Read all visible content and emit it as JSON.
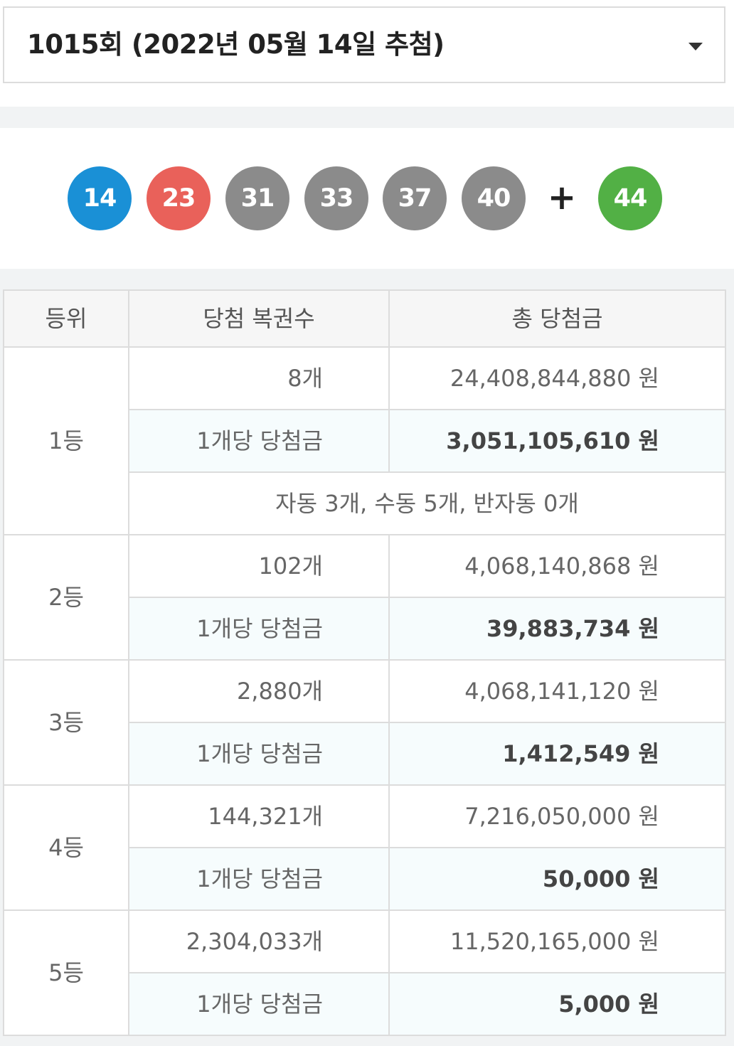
{
  "draw_select": {
    "label": "1015회 (2022년 05월 14일 추첨)",
    "caret_icon": "caret-down-icon"
  },
  "numbers": {
    "main": [
      {
        "value": "14",
        "color": "#1a90d6"
      },
      {
        "value": "23",
        "color": "#e9615a"
      },
      {
        "value": "31",
        "color": "#8b8b8b"
      },
      {
        "value": "33",
        "color": "#8b8b8b"
      },
      {
        "value": "37",
        "color": "#8b8b8b"
      },
      {
        "value": "40",
        "color": "#8b8b8b"
      }
    ],
    "plus": "+",
    "bonus": {
      "value": "44",
      "color": "#52b045"
    }
  },
  "table": {
    "headers": {
      "rank": "등위",
      "count": "당첨 복권수",
      "total": "총 당첨금"
    },
    "per_ticket_label": "1개당 당첨금",
    "rows": [
      {
        "rank": "1등",
        "count": "8개",
        "total": "24,408,844,880 원",
        "per_ticket": "3,051,105,610 원",
        "note": "자동 3개, 수동 5개, 반자동 0개"
      },
      {
        "rank": "2등",
        "count": "102개",
        "total": "4,068,140,868 원",
        "per_ticket": "39,883,734 원"
      },
      {
        "rank": "3등",
        "count": "2,880개",
        "total": "4,068,141,120 원",
        "per_ticket": "1,412,549 원"
      },
      {
        "rank": "4등",
        "count": "144,321개",
        "total": "7,216,050,000 원",
        "per_ticket": "50,000 원"
      },
      {
        "rank": "5등",
        "count": "2,304,033개",
        "total": "11,520,165,000 원",
        "per_ticket": "5,000 원"
      }
    ]
  }
}
